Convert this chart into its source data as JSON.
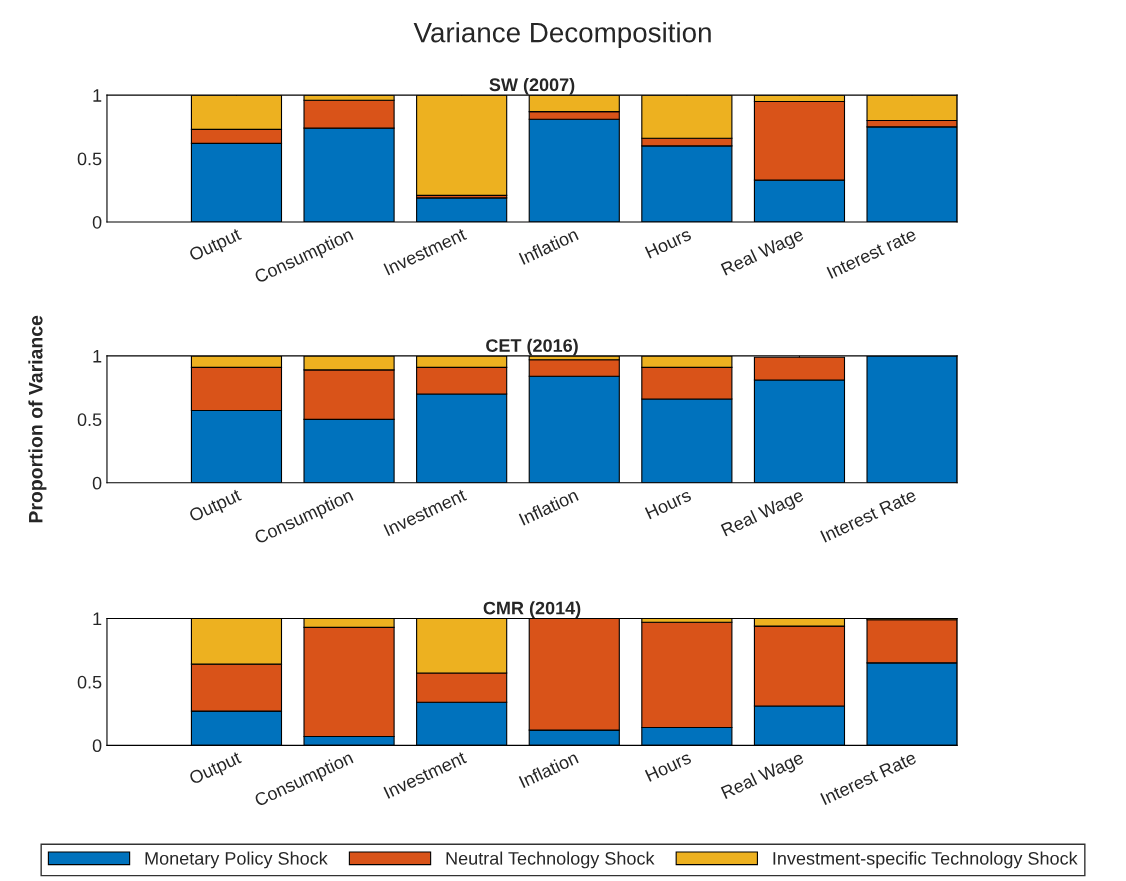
{
  "chart_data": [
    {
      "type": "other",
      "title": "Variance Decomposition"
    },
    {
      "type": "bar",
      "stacked": true,
      "title": "SW (2007)",
      "categories": [
        "Output",
        "Consumption",
        "Investment",
        "Inflation",
        "Hours",
        "Real Wage",
        "Interest rate"
      ],
      "ylim": [
        0,
        1
      ],
      "yticks": [
        0,
        0.5,
        1
      ],
      "grid": false,
      "legend": false,
      "series": [
        {
          "color": "#0072bd",
          "values": [
            0.62,
            0.74,
            0.19,
            0.81,
            0.6,
            0.33,
            0.75
          ]
        },
        {
          "color": "#d95319",
          "values": [
            0.11,
            0.22,
            0.02,
            0.06,
            0.06,
            0.62,
            0.05
          ]
        },
        {
          "color": "#edb120",
          "values": [
            0.27,
            0.04,
            0.79,
            0.13,
            0.34,
            0.05,
            0.2
          ]
        }
      ]
    },
    {
      "type": "bar",
      "stacked": true,
      "title": "CET (2016)",
      "ylabel": "Proportion of Variance",
      "categories": [
        "Output",
        "Consumption",
        "Investment",
        "Inflation",
        "Hours",
        "Real Wage",
        "Interest Rate"
      ],
      "ylim": [
        0,
        1
      ],
      "yticks": [
        0,
        0.5,
        1
      ],
      "grid": false,
      "legend": false,
      "series": [
        {
          "color": "#0072bd",
          "values": [
            0.57,
            0.5,
            0.7,
            0.84,
            0.66,
            0.81,
            1.0
          ]
        },
        {
          "color": "#d95319",
          "values": [
            0.34,
            0.39,
            0.21,
            0.13,
            0.25,
            0.18,
            0
          ]
        },
        {
          "color": "#edb120",
          "values": [
            0.09,
            0.11,
            0.09,
            0.03,
            0.09,
            null,
            0
          ]
        }
      ]
    },
    {
      "type": "bar",
      "stacked": true,
      "title": "CMR (2014)",
      "categories": [
        "Output",
        "Consumption",
        "Investment",
        "Inflation",
        "Hours",
        "Real Wage",
        "Interest Rate"
      ],
      "ylim": [
        0,
        1
      ],
      "yticks": [
        0,
        0.5,
        1
      ],
      "grid": false,
      "legend": "bottom",
      "series": [
        {
          "name": "Monetary Policy Shock",
          "color": "#0072bd",
          "values": [
            0.27,
            0.07,
            0.34,
            0.12,
            0.14,
            0.31,
            0.65
          ]
        },
        {
          "name": "Neutral Technology Shock",
          "color": "#d95319",
          "values": [
            0.37,
            0.86,
            0.23,
            0.88,
            0.83,
            0.63,
            0.34
          ]
        },
        {
          "name": "Investment-specific Technology Shock",
          "color": "#edb120",
          "values": [
            0.36,
            0.07,
            0.43,
            0,
            0.03,
            0.06,
            0.01
          ]
        }
      ]
    }
  ]
}
